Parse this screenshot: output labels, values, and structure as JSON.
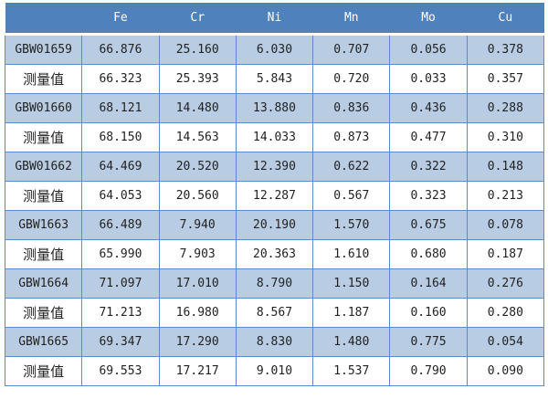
{
  "colors": {
    "header": "#4f81bd",
    "band": "#b8cce4",
    "border": "#5b8ac6"
  },
  "table": {
    "headers": [
      "",
      "Fe",
      "Cr",
      "Ni",
      "Mn",
      "Mo",
      "Cu"
    ],
    "rows": [
      [
        "GBW01659",
        "66.876",
        "25.160",
        "6.030",
        "0.707",
        "0.056",
        "0.378"
      ],
      [
        "测量值",
        "66.323",
        "25.393",
        "5.843",
        "0.720",
        "0.033",
        "0.357"
      ],
      [
        "GBW01660",
        "68.121",
        "14.480",
        "13.880",
        "0.836",
        "0.436",
        "0.288"
      ],
      [
        "测量值",
        "68.150",
        "14.563",
        "14.033",
        "0.873",
        "0.477",
        "0.310"
      ],
      [
        "GBW01662",
        "64.469",
        "20.520",
        "12.390",
        "0.622",
        "0.322",
        "0.148"
      ],
      [
        "测量值",
        "64.053",
        "20.560",
        "12.287",
        "0.567",
        "0.323",
        "0.213"
      ],
      [
        "GBW1663",
        "66.489",
        "7.940",
        "20.190",
        "1.570",
        "0.675",
        "0.078"
      ],
      [
        "测量值",
        "65.990",
        "7.903",
        "20.363",
        "1.610",
        "0.680",
        "0.187"
      ],
      [
        "GBW1664",
        "71.097",
        "17.010",
        "8.790",
        "1.150",
        "0.164",
        "0.276"
      ],
      [
        "测量值",
        "71.213",
        "16.980",
        "8.567",
        "1.187",
        "0.160",
        "0.280"
      ],
      [
        "GBW1665",
        "69.347",
        "17.290",
        "8.830",
        "1.480",
        "0.775",
        "0.054"
      ],
      [
        "测量值",
        "69.553",
        "17.217",
        "9.010",
        "1.537",
        "0.790",
        "0.090"
      ]
    ]
  }
}
